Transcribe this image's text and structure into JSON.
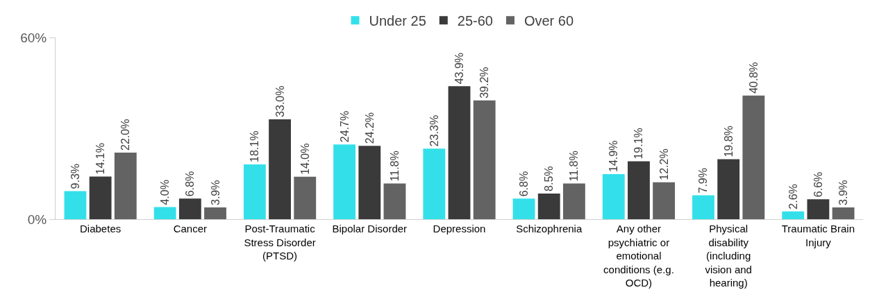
{
  "chart_data": {
    "type": "bar",
    "categories": [
      "Diabetes",
      "Cancer",
      "Post-Traumatic Stress Disorder (PTSD)",
      "Bipolar Disorder",
      "Depression",
      "Schizophrenia",
      "Any other psychiatric or emotional conditions (e.g. OCD)",
      "Physical disability (including vision and hearing)",
      "Traumatic Brain Injury"
    ],
    "series": [
      {
        "name": "Under 25",
        "color": "#33e0ea",
        "values": [
          9.3,
          4.0,
          18.1,
          24.7,
          23.3,
          6.8,
          14.9,
          7.9,
          2.6
        ],
        "value_labels": [
          "9.3%",
          "4.0%",
          "18.1%",
          "24.7%",
          "23.3%",
          "6.8%",
          "14.9%",
          "7.9%",
          "2.6%"
        ]
      },
      {
        "name": "25-60",
        "color": "#3a3a3a",
        "values": [
          14.1,
          6.8,
          33.0,
          24.2,
          43.9,
          8.5,
          19.1,
          19.8,
          6.6
        ],
        "value_labels": [
          "14.1%",
          "6.8%",
          "33.0%",
          "24.2%",
          "43.9%",
          "8.5%",
          "19.1%",
          "19.8%",
          "6.6%"
        ]
      },
      {
        "name": "Over 60",
        "color": "#636363",
        "values": [
          22.0,
          3.9,
          14.0,
          11.8,
          39.2,
          11.8,
          12.2,
          40.8,
          3.9
        ],
        "value_labels": [
          "22.0%",
          "3.9%",
          "14.0%",
          "11.8%",
          "39.2%",
          "11.8%",
          "12.2%",
          "40.8%",
          "3.9%"
        ]
      }
    ],
    "ylim": [
      0,
      60
    ],
    "yticks": [
      {
        "value": 0,
        "label": "0%"
      },
      {
        "value": 60,
        "label": "60%"
      }
    ],
    "grid": false,
    "legend": "top"
  }
}
